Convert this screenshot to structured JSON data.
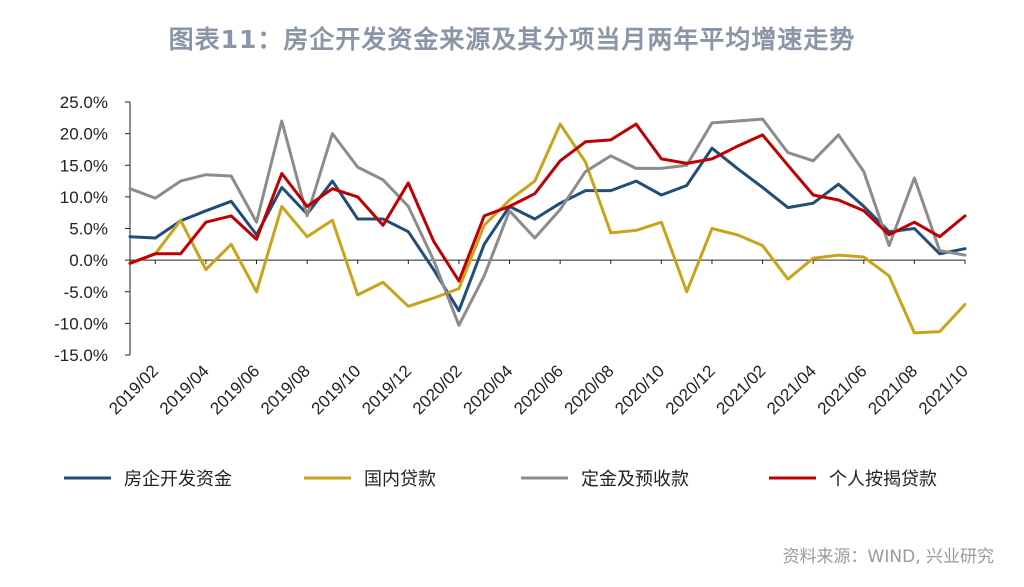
{
  "title": "图表11：房企开发资金来源及其分项当月两年平均增速走势",
  "source": "资料来源：WIND, 兴业研究",
  "chart_data": {
    "type": "line",
    "ylim": [
      -15,
      25
    ],
    "y_ticks": [
      "25.0%",
      "20.0%",
      "15.0%",
      "10.0%",
      "5.0%",
      "0.0%",
      "-5.0%",
      "-10.0%",
      "-15.0%"
    ],
    "x": [
      "2019/01",
      "2019/02",
      "2019/03",
      "2019/04",
      "2019/05",
      "2019/06",
      "2019/07",
      "2019/08",
      "2019/09",
      "2019/10",
      "2019/11",
      "2019/12",
      "2020/01",
      "2020/02",
      "2020/03",
      "2020/04",
      "2020/05",
      "2020/06",
      "2020/07",
      "2020/08",
      "2020/09",
      "2020/10",
      "2020/11",
      "2020/12",
      "2021/01",
      "2021/02",
      "2021/03",
      "2021/04",
      "2021/05",
      "2021/06",
      "2021/07",
      "2021/08",
      "2021/09",
      "2021/10"
    ],
    "x_tick_labels": [
      "2019/02",
      "2019/04",
      "2019/06",
      "2019/08",
      "2019/10",
      "2019/12",
      "2020/02",
      "2020/04",
      "2020/06",
      "2020/08",
      "2020/10",
      "2020/12",
      "2021/02",
      "2021/04",
      "2021/06",
      "2021/08",
      "2021/10"
    ],
    "grid": false,
    "legend_position": "bottom",
    "series": [
      {
        "name": "房企开发资金",
        "color": "#1f4e79",
        "values": [
          3.7,
          3.5,
          6.2,
          7.8,
          9.3,
          4.0,
          11.5,
          7.3,
          12.5,
          6.5,
          6.5,
          4.5,
          -1.5,
          -8.0,
          2.5,
          8.5,
          6.5,
          9.0,
          11.0,
          11.0,
          12.5,
          10.3,
          11.8,
          17.7,
          14.5,
          11.5,
          8.3,
          9.0,
          12.0,
          8.5,
          4.5,
          5.0,
          1.0,
          1.8
        ]
      },
      {
        "name": "国内贷款",
        "color": "#c9a41a",
        "values": [
          -0.5,
          1.0,
          6.3,
          -1.5,
          2.5,
          -5.0,
          8.5,
          3.7,
          6.3,
          -5.5,
          -3.5,
          -7.3,
          -6.0,
          -4.5,
          5.5,
          9.5,
          12.5,
          21.5,
          15.5,
          4.3,
          4.7,
          6.0,
          -5.0,
          5.0,
          4.0,
          2.3,
          -3.0,
          0.3,
          0.8,
          0.5,
          -2.5,
          -11.5,
          -11.3,
          -7.0
        ]
      },
      {
        "name": "定金及预收款",
        "color": "#8c8c8c",
        "values": [
          11.3,
          9.8,
          12.5,
          13.5,
          13.3,
          6.0,
          22.0,
          7.0,
          20.0,
          14.7,
          12.7,
          8.5,
          0.0,
          -10.3,
          -2.5,
          7.8,
          3.5,
          8.0,
          14.0,
          16.5,
          14.5,
          14.5,
          15.0,
          21.7,
          22.0,
          22.3,
          17.0,
          15.7,
          19.8,
          14.0,
          2.3,
          13.0,
          1.5,
          0.8
        ]
      },
      {
        "name": "个人按揭贷款",
        "color": "#c00000",
        "values": [
          -0.5,
          1.0,
          1.0,
          6.0,
          7.0,
          3.3,
          13.7,
          8.5,
          11.3,
          10.0,
          5.5,
          12.2,
          3.0,
          -3.3,
          7.0,
          8.5,
          10.5,
          15.7,
          18.7,
          19.0,
          21.5,
          16.0,
          15.3,
          16.0,
          18.0,
          19.8,
          15.0,
          10.3,
          9.5,
          7.8,
          4.0,
          6.0,
          3.7,
          7.0
        ]
      }
    ]
  }
}
